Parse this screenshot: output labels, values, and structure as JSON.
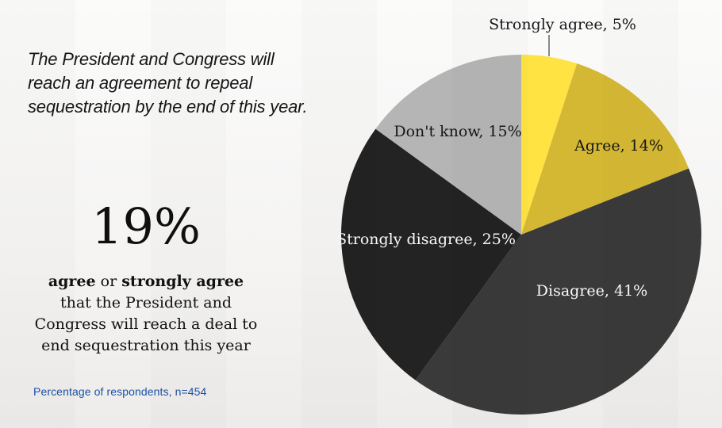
{
  "slide": {
    "question_lines": [
      "The President and Congress will",
      "reach an agreement to repeal",
      "sequestration by the end of this year."
    ],
    "stat": "19%",
    "summary_lines": [
      [
        {
          "t": "agree",
          "b": true
        },
        {
          "t": " or ",
          "b": false
        },
        {
          "t": "strongly agree",
          "b": true
        }
      ],
      [
        {
          "t": "that the President and",
          "b": false
        }
      ],
      [
        {
          "t": "Congress will reach a deal to",
          "b": false
        }
      ],
      [
        {
          "t": "end sequestration this year",
          "b": false
        }
      ]
    ],
    "footnote": "Percentage of respondents, n=454"
  },
  "colors": {
    "footnote_blue": "#1c50a8",
    "label_dark": "#161616",
    "label_light": "#fafafa",
    "leader_line": "#1a1a1a"
  },
  "chart_data": {
    "type": "pie",
    "title": "The President and Congress will reach an agreement to repeal sequestration by the end of this year.",
    "categories": [
      "Strongly agree",
      "Agree",
      "Disagree",
      "Strongly disagree",
      "Don't know"
    ],
    "values": [
      5,
      14,
      41,
      25,
      15
    ],
    "labels": [
      "Strongly agree, 5%",
      "Agree, 14%",
      "Disagree, 41%",
      "Strongly disagree, 25%",
      "Don't know, 15%"
    ],
    "colors": [
      "#fee342",
      "#d4b834",
      "#3a3a3a",
      "#232323",
      "#b5b5b5"
    ],
    "unit": "percent of respondents",
    "n": 454,
    "start_angle_deg": 0,
    "direction": "clockwise",
    "legend_position": "none"
  }
}
